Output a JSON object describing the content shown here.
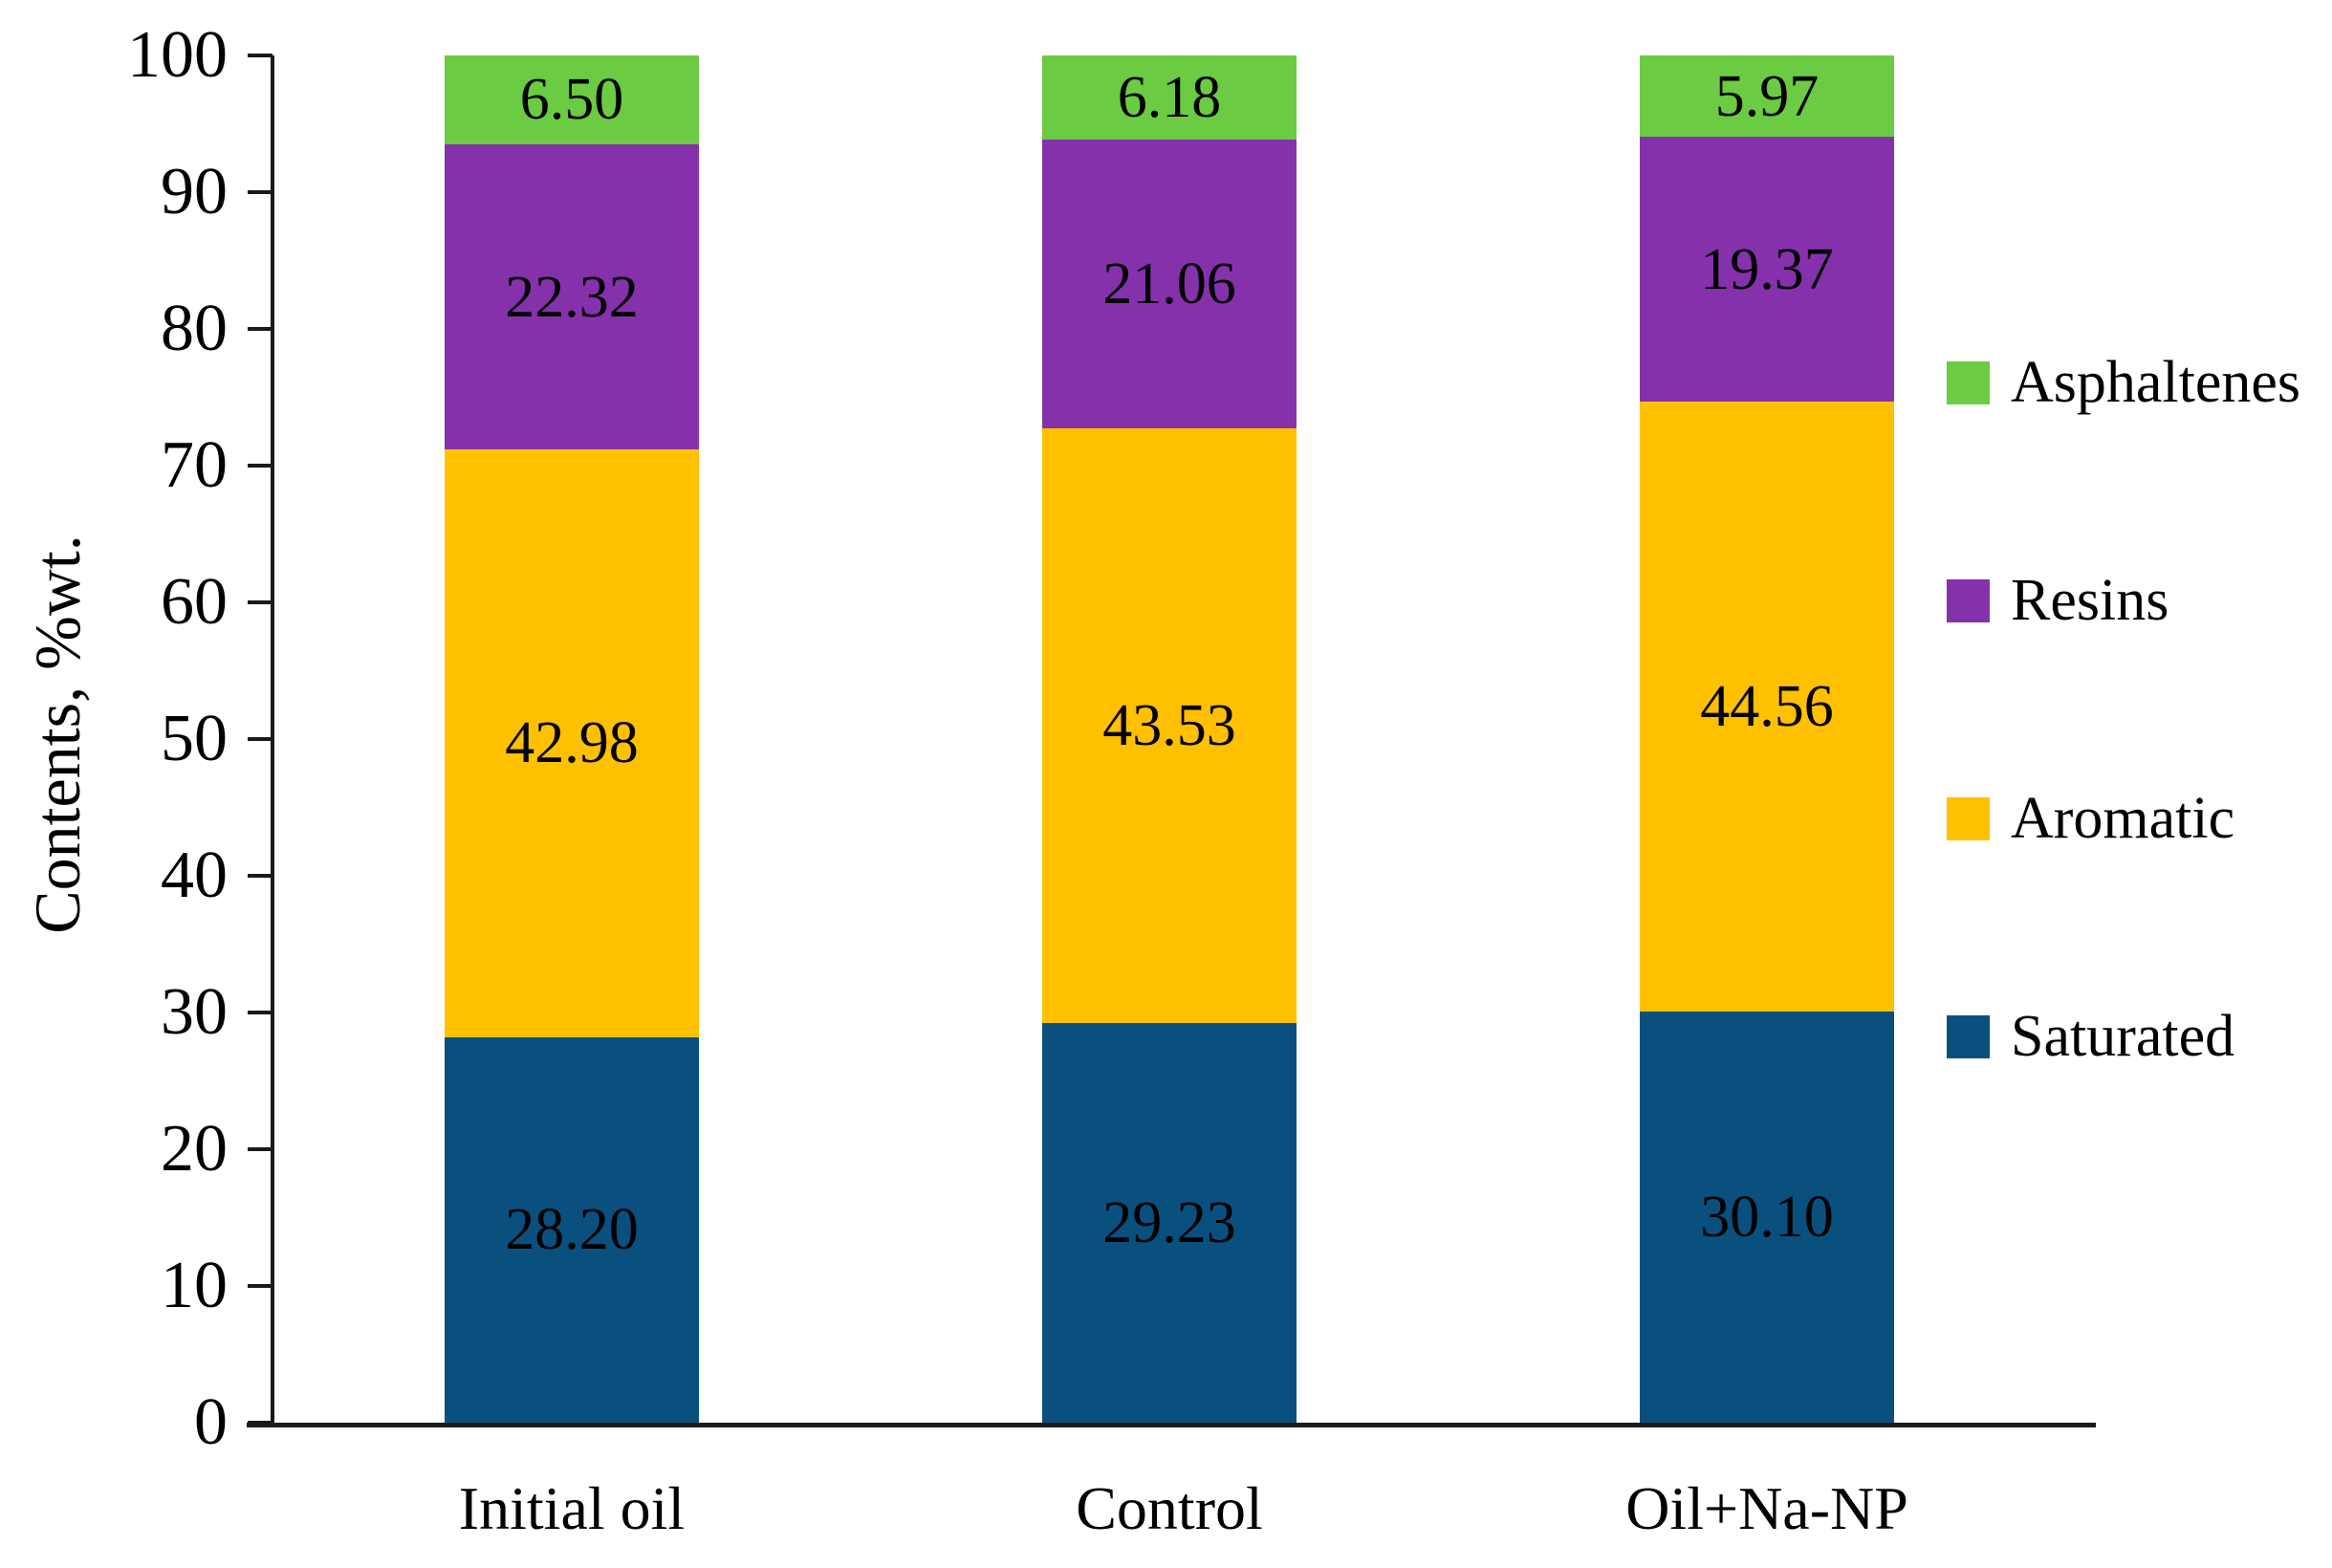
{
  "chart_data": {
    "type": "bar",
    "stacked": true,
    "title": "",
    "xlabel": "",
    "ylabel": "Contents, %wt.",
    "ylim": [
      0,
      100
    ],
    "yticks": [
      0,
      10,
      20,
      30,
      40,
      50,
      60,
      70,
      80,
      90,
      100
    ],
    "grid": false,
    "legend_position": "right",
    "legend_order_top_to_bottom": [
      "Asphaltenes",
      "Resins",
      "Aromatic",
      "Saturated"
    ],
    "categories": [
      "Initial oil",
      "Control",
      "Oil+Na-NP"
    ],
    "series": [
      {
        "name": "Saturated",
        "color": "#0A507E",
        "values": [
          28.2,
          29.23,
          30.1
        ]
      },
      {
        "name": "Aromatic",
        "color": "#FFC000",
        "values": [
          42.98,
          43.53,
          44.56
        ]
      },
      {
        "name": "Resins",
        "color": "#8531AC",
        "values": [
          22.32,
          21.06,
          19.37
        ]
      },
      {
        "name": "Asphaltenes",
        "color": "#6BCB43",
        "values": [
          6.5,
          6.18,
          5.97
        ]
      }
    ],
    "value_label_decimals": 2,
    "value_labels_shown": true,
    "axis_color": "#1a1a1a"
  }
}
